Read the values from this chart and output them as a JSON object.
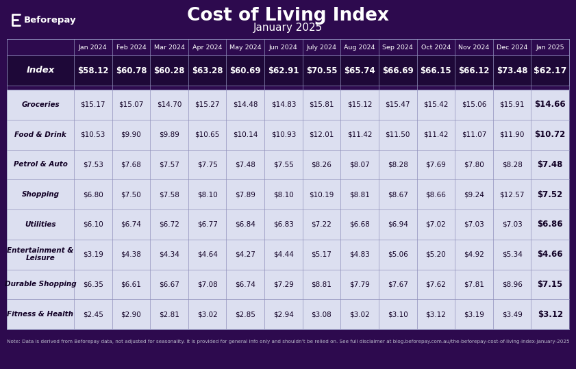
{
  "title": "Cost of Living Index",
  "subtitle": "January 2025",
  "bg_color": "#2d0a4e",
  "index_row_bg": "#1e0838",
  "data_row_bg": "#dcdff0",
  "header_bg": "#2d0a4e",
  "note_text": "Note: Data is derived from Beforepay data, not adjusted for seasonality. It is provided for general info only and shouldn’t be relied on. See full disclaimer at blog.beforepay.com.au/the-beforepay-cost-of-living-index-january-2025",
  "columns": [
    "",
    "Jan 2024",
    "Feb 2024",
    "Mar 2024",
    "Apr 2024",
    "May 2024",
    "Jun 2024",
    "July 2024",
    "Aug 2024",
    "Sep 2024",
    "Oct 2024",
    "Nov 2024",
    "Dec 2024",
    "Jan 2025"
  ],
  "rows": [
    {
      "label": "Index",
      "values": [
        "$58.12",
        "$60.78",
        "$60.28",
        "$63.28",
        "$60.69",
        "$62.91",
        "$70.55",
        "$65.74",
        "$66.69",
        "$66.15",
        "$66.12",
        "$73.48",
        "$62.17"
      ],
      "is_index": true
    },
    {
      "label": "Groceries",
      "values": [
        "$15.17",
        "$15.07",
        "$14.70",
        "$15.27",
        "$14.48",
        "$14.83",
        "$15.81",
        "$15.12",
        "$15.47",
        "$15.42",
        "$15.06",
        "$15.91",
        "$14.66"
      ],
      "is_index": false
    },
    {
      "label": "Food & Drink",
      "values": [
        "$10.53",
        "$9.90",
        "$9.89",
        "$10.65",
        "$10.14",
        "$10.93",
        "$12.01",
        "$11.42",
        "$11.50",
        "$11.42",
        "$11.07",
        "$11.90",
        "$10.72"
      ],
      "is_index": false
    },
    {
      "label": "Petrol & Auto",
      "values": [
        "$7.53",
        "$7.68",
        "$7.57",
        "$7.75",
        "$7.48",
        "$7.55",
        "$8.26",
        "$8.07",
        "$8.28",
        "$7.69",
        "$7.80",
        "$8.28",
        "$7.48"
      ],
      "is_index": false
    },
    {
      "label": "Shopping",
      "values": [
        "$6.80",
        "$7.50",
        "$7.58",
        "$8.10",
        "$7.89",
        "$8.10",
        "$10.19",
        "$8.81",
        "$8.67",
        "$8.66",
        "$9.24",
        "$12.57",
        "$7.52"
      ],
      "is_index": false
    },
    {
      "label": "Utilities",
      "values": [
        "$6.10",
        "$6.74",
        "$6.72",
        "$6.77",
        "$6.84",
        "$6.83",
        "$7.22",
        "$6.68",
        "$6.94",
        "$7.02",
        "$7.03",
        "$7.03",
        "$6.86"
      ],
      "is_index": false
    },
    {
      "label": "Entertainment &\nLeisure",
      "values": [
        "$3.19",
        "$4.38",
        "$4.34",
        "$4.64",
        "$4.27",
        "$4.44",
        "$5.17",
        "$4.83",
        "$5.06",
        "$5.20",
        "$4.92",
        "$5.34",
        "$4.66"
      ],
      "is_index": false
    },
    {
      "label": "Durable Shopping",
      "values": [
        "$6.35",
        "$6.61",
        "$6.67",
        "$7.08",
        "$6.74",
        "$7.29",
        "$8.81",
        "$7.79",
        "$7.67",
        "$7.62",
        "$7.81",
        "$8.96",
        "$7.15"
      ],
      "is_index": false
    },
    {
      "label": "Fitness & Health",
      "values": [
        "$2.45",
        "$2.90",
        "$2.81",
        "$3.02",
        "$2.85",
        "$2.94",
        "$3.08",
        "$3.02",
        "$3.10",
        "$3.12",
        "$3.19",
        "$3.49",
        "$3.12"
      ],
      "is_index": false
    }
  ]
}
